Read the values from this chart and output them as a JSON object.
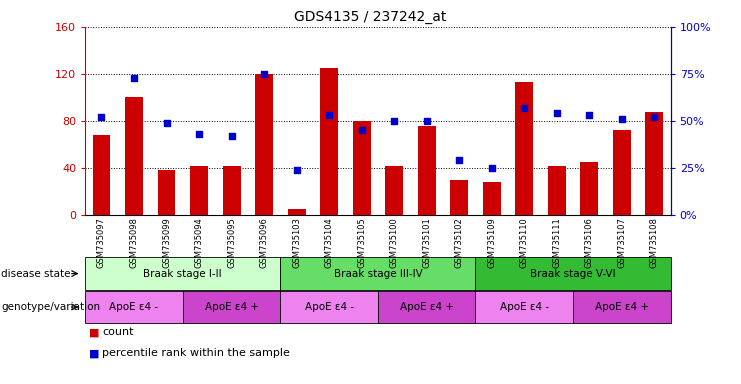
{
  "title": "GDS4135 / 237242_at",
  "samples": [
    "GSM735097",
    "GSM735098",
    "GSM735099",
    "GSM735094",
    "GSM735095",
    "GSM735096",
    "GSM735103",
    "GSM735104",
    "GSM735105",
    "GSM735100",
    "GSM735101",
    "GSM735102",
    "GSM735109",
    "GSM735110",
    "GSM735111",
    "GSM735106",
    "GSM735107",
    "GSM735108"
  ],
  "counts": [
    68,
    100,
    38,
    42,
    42,
    120,
    5,
    125,
    80,
    42,
    76,
    30,
    28,
    113,
    42,
    45,
    72,
    88
  ],
  "percentiles": [
    52,
    73,
    49,
    43,
    42,
    75,
    24,
    53,
    45,
    50,
    50,
    29,
    25,
    57,
    54,
    53,
    51,
    52
  ],
  "ylim_left": [
    0,
    160
  ],
  "ylim_right": [
    0,
    100
  ],
  "yticks_left": [
    0,
    40,
    80,
    120,
    160
  ],
  "ytick_labels_left": [
    "0",
    "40",
    "80",
    "120",
    "160"
  ],
  "yticks_right": [
    0,
    25,
    50,
    75,
    100
  ],
  "ytick_labels_right": [
    "0%",
    "25%",
    "50%",
    "75%",
    "100%"
  ],
  "bar_color": "#cc0000",
  "dot_color": "#0000cc",
  "grid_color": "#000000",
  "disease_state_label": "disease state",
  "genotype_label": "genotype/variation",
  "disease_groups": [
    {
      "label": "Braak stage I-II",
      "start": 0,
      "end": 6,
      "color": "#ccffcc"
    },
    {
      "label": "Braak stage III-IV",
      "start": 6,
      "end": 12,
      "color": "#66dd66"
    },
    {
      "label": "Braak stage V-VI",
      "start": 12,
      "end": 18,
      "color": "#33bb33"
    }
  ],
  "genotype_groups": [
    {
      "label": "ApoE ε4 -",
      "start": 0,
      "end": 3,
      "color": "#ee82ee"
    },
    {
      "label": "ApoE ε4 +",
      "start": 3,
      "end": 6,
      "color": "#cc44cc"
    },
    {
      "label": "ApoE ε4 -",
      "start": 6,
      "end": 9,
      "color": "#ee82ee"
    },
    {
      "label": "ApoE ε4 +",
      "start": 9,
      "end": 12,
      "color": "#cc44cc"
    },
    {
      "label": "ApoE ε4 -",
      "start": 12,
      "end": 15,
      "color": "#ee82ee"
    },
    {
      "label": "ApoE ε4 +",
      "start": 15,
      "end": 18,
      "color": "#cc44cc"
    }
  ],
  "legend_count_label": "count",
  "legend_percentile_label": "percentile rank within the sample",
  "background_color": "#ffffff"
}
